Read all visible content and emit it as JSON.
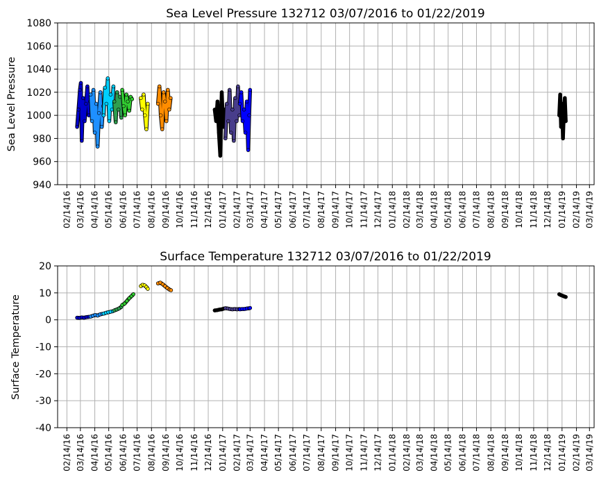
{
  "chart_data": [
    {
      "type": "scatter",
      "title": "Sea Level Pressure 132712  03/07/2016 to 01/22/2019",
      "ylabel": "Sea Level Pressure",
      "xlabel": "",
      "ylim": [
        940,
        1080
      ],
      "yticks": [
        940,
        960,
        980,
        1000,
        1020,
        1040,
        1060,
        1080
      ],
      "xlim": [
        "2016-01-25",
        "2019-03-24"
      ],
      "grid": true,
      "xtick_labels": [
        "02/14/16",
        "03/14/16",
        "04/14/16",
        "05/14/16",
        "06/14/16",
        "07/14/16",
        "08/14/16",
        "09/14/16",
        "10/14/16",
        "11/14/16",
        "12/14/16",
        "01/14/17",
        "02/14/17",
        "03/14/17",
        "04/14/17",
        "05/14/17",
        "06/14/17",
        "07/14/17",
        "08/14/17",
        "09/14/17",
        "10/14/17",
        "11/14/17",
        "12/14/17",
        "01/14/18",
        "02/14/18",
        "03/14/18",
        "04/14/18",
        "05/14/18",
        "06/14/18",
        "07/14/18",
        "08/14/18",
        "09/14/18",
        "10/14/18",
        "11/14/18",
        "12/14/18",
        "01/14/19",
        "02/14/19",
        "03/14/19"
      ],
      "series": [
        {
          "color": "#0000cd",
          "points": [
            [
              "2016-03-07",
              990
            ],
            [
              "2016-03-10",
              1005
            ],
            [
              "2016-03-13",
              1022
            ],
            [
              "2016-03-15",
              1028
            ],
            [
              "2016-03-17",
              978
            ],
            [
              "2016-03-20",
              1015
            ],
            [
              "2016-03-23",
              995
            ],
            [
              "2016-03-26",
              1010
            ],
            [
              "2016-03-29",
              1025
            ],
            [
              "2016-04-01",
              1000
            ],
            [
              "2016-04-04",
              1012
            ]
          ]
        },
        {
          "color": "#1e90ff",
          "points": [
            [
              "2016-04-05",
              1018
            ],
            [
              "2016-04-08",
              995
            ],
            [
              "2016-04-11",
              1022
            ],
            [
              "2016-04-14",
              985
            ],
            [
              "2016-04-17",
              1010
            ],
            [
              "2016-04-20",
              973
            ],
            [
              "2016-04-23",
              1002
            ],
            [
              "2016-04-26",
              1020
            ],
            [
              "2016-04-29",
              990
            ],
            [
              "2016-05-02",
              1008
            ]
          ]
        },
        {
          "color": "#00cfff",
          "points": [
            [
              "2016-05-03",
              1000
            ],
            [
              "2016-05-06",
              1024
            ],
            [
              "2016-05-09",
              1010
            ],
            [
              "2016-05-12",
              1032
            ],
            [
              "2016-05-15",
              995
            ],
            [
              "2016-05-18",
              1018
            ],
            [
              "2016-05-21",
              1005
            ],
            [
              "2016-05-24",
              1025
            ]
          ]
        },
        {
          "color": "#2e9f4f",
          "points": [
            [
              "2016-05-26",
              1012
            ],
            [
              "2016-05-29",
              994
            ],
            [
              "2016-06-01",
              1020
            ],
            [
              "2016-06-04",
              1005
            ],
            [
              "2016-06-07",
              1016
            ],
            [
              "2016-06-10",
              998
            ]
          ]
        },
        {
          "color": "#32cd32",
          "points": [
            [
              "2016-06-12",
              1022
            ],
            [
              "2016-06-15",
              1008
            ],
            [
              "2016-06-18",
              1000
            ],
            [
              "2016-06-21",
              1018
            ],
            [
              "2016-06-24",
              1012
            ],
            [
              "2016-06-27",
              1004
            ],
            [
              "2016-06-30",
              1016
            ],
            [
              "2016-07-03",
              1014
            ]
          ]
        },
        {
          "color": "#ffff00",
          "points": [
            [
              "2016-07-22",
              1015
            ],
            [
              "2016-07-25",
              1005
            ],
            [
              "2016-07-28",
              1018
            ],
            [
              "2016-07-31",
              1000
            ],
            [
              "2016-08-03",
              988
            ],
            [
              "2016-08-06",
              1010
            ]
          ]
        },
        {
          "color": "#ff8c00",
          "points": [
            [
              "2016-08-28",
              1010
            ],
            [
              "2016-08-31",
              1025
            ],
            [
              "2016-09-03",
              1000
            ],
            [
              "2016-09-06",
              988
            ],
            [
              "2016-09-09",
              1020
            ],
            [
              "2016-09-12",
              1012
            ],
            [
              "2016-09-15",
              995
            ],
            [
              "2016-09-18",
              1022
            ],
            [
              "2016-09-21",
              1005
            ],
            [
              "2016-09-24",
              1015
            ]
          ]
        },
        {
          "color": "#000000",
          "points": [
            [
              "2016-12-28",
              1005
            ],
            [
              "2016-12-31",
              995
            ],
            [
              "2017-01-03",
              1012
            ],
            [
              "2017-01-06",
              985
            ],
            [
              "2017-01-09",
              965
            ],
            [
              "2017-01-12",
              1020
            ],
            [
              "2017-01-15",
              990
            ],
            [
              "2017-01-18",
              1005
            ]
          ]
        },
        {
          "color": "#483d8b",
          "points": [
            [
              "2017-01-20",
              980
            ],
            [
              "2017-01-23",
              1010
            ],
            [
              "2017-01-26",
              995
            ],
            [
              "2017-01-29",
              1022
            ],
            [
              "2017-02-01",
              985
            ],
            [
              "2017-02-04",
              1005
            ],
            [
              "2017-02-07",
              978
            ],
            [
              "2017-02-10",
              1015
            ],
            [
              "2017-02-13",
              995
            ],
            [
              "2017-02-16",
              1025
            ],
            [
              "2017-02-19",
              1000
            ]
          ]
        },
        {
          "color": "#0000ff",
          "points": [
            [
              "2017-02-20",
              1010
            ],
            [
              "2017-02-23",
              1020
            ],
            [
              "2017-02-26",
              995
            ],
            [
              "2017-03-01",
              1005
            ],
            [
              "2017-03-04",
              985
            ],
            [
              "2017-03-07",
              1012
            ],
            [
              "2017-03-10",
              970
            ],
            [
              "2017-03-12",
              1000
            ],
            [
              "2017-03-14",
              1022
            ]
          ]
        },
        {
          "color": "#000000",
          "points": [
            [
              "2019-01-08",
              1000
            ],
            [
              "2019-01-10",
              1018
            ],
            [
              "2019-01-12",
              990
            ],
            [
              "2019-01-14",
              1010
            ],
            [
              "2019-01-16",
              980
            ],
            [
              "2019-01-18",
              1005
            ],
            [
              "2019-01-20",
              1015
            ],
            [
              "2019-01-22",
              995
            ]
          ]
        }
      ]
    },
    {
      "type": "scatter",
      "title": "Surface Temperature 132712  03/07/2016 to 01/22/2019",
      "ylabel": "Surface Temperature",
      "xlabel": "",
      "ylim": [
        -40,
        20
      ],
      "yticks": [
        -40,
        -30,
        -20,
        -10,
        0,
        10,
        20
      ],
      "xlim": [
        "2016-01-25",
        "2019-03-24"
      ],
      "grid": true,
      "xtick_labels": [
        "02/14/16",
        "03/14/16",
        "04/14/16",
        "05/14/16",
        "06/14/16",
        "07/14/16",
        "08/14/16",
        "09/14/16",
        "10/14/16",
        "11/14/16",
        "12/14/16",
        "01/14/17",
        "02/14/17",
        "03/14/17",
        "04/14/17",
        "05/14/17",
        "06/14/17",
        "07/14/17",
        "08/14/17",
        "09/14/17",
        "10/14/17",
        "11/14/17",
        "12/14/17",
        "01/14/18",
        "02/14/18",
        "03/14/18",
        "04/14/18",
        "05/14/18",
        "06/14/18",
        "07/14/18",
        "08/14/18",
        "09/14/18",
        "10/14/18",
        "11/14/18",
        "12/14/18",
        "01/14/19",
        "02/14/19",
        "03/14/19"
      ],
      "series": [
        {
          "color": "#0000cd",
          "points": [
            [
              "2016-03-07",
              0.8
            ],
            [
              "2016-03-12",
              0.7
            ],
            [
              "2016-03-17",
              0.9
            ],
            [
              "2016-03-22",
              0.8
            ],
            [
              "2016-03-27",
              1.0
            ],
            [
              "2016-04-01",
              1.1
            ]
          ]
        },
        {
          "color": "#1e90ff",
          "points": [
            [
              "2016-04-05",
              1.2
            ],
            [
              "2016-04-10",
              1.5
            ],
            [
              "2016-04-15",
              1.8
            ],
            [
              "2016-04-20",
              1.6
            ],
            [
              "2016-04-25",
              2.0
            ],
            [
              "2016-04-30",
              2.2
            ]
          ]
        },
        {
          "color": "#00cfff",
          "points": [
            [
              "2016-05-03",
              2.3
            ],
            [
              "2016-05-08",
              2.6
            ],
            [
              "2016-05-13",
              2.8
            ],
            [
              "2016-05-18",
              3.0
            ],
            [
              "2016-05-23",
              3.2
            ]
          ]
        },
        {
          "color": "#2e9f4f",
          "points": [
            [
              "2016-05-26",
              3.5
            ],
            [
              "2016-05-31",
              3.8
            ],
            [
              "2016-06-05",
              4.2
            ],
            [
              "2016-06-10",
              4.8
            ]
          ]
        },
        {
          "color": "#32cd32",
          "points": [
            [
              "2016-06-12",
              5.5
            ],
            [
              "2016-06-17",
              6.0
            ],
            [
              "2016-06-22",
              7.0
            ],
            [
              "2016-06-27",
              8.0
            ],
            [
              "2016-07-02",
              8.8
            ],
            [
              "2016-07-06",
              9.5
            ]
          ]
        },
        {
          "color": "#ffff00",
          "points": [
            [
              "2016-07-22",
              12.5
            ],
            [
              "2016-07-26",
              13.0
            ],
            [
              "2016-07-30",
              12.8
            ],
            [
              "2016-08-03",
              12.2
            ],
            [
              "2016-08-06",
              11.5
            ]
          ]
        },
        {
          "color": "#ff8c00",
          "points": [
            [
              "2016-08-28",
              13.5
            ],
            [
              "2016-09-02",
              13.8
            ],
            [
              "2016-09-07",
              13.2
            ],
            [
              "2016-09-12",
              12.5
            ],
            [
              "2016-09-17",
              11.8
            ],
            [
              "2016-09-22",
              11.2
            ],
            [
              "2016-09-25",
              11.0
            ]
          ]
        },
        {
          "color": "#000000",
          "points": [
            [
              "2016-12-28",
              3.5
            ],
            [
              "2017-01-02",
              3.6
            ],
            [
              "2017-01-07",
              3.8
            ],
            [
              "2017-01-12",
              3.9
            ],
            [
              "2017-01-17",
              4.2
            ]
          ]
        },
        {
          "color": "#483d8b",
          "points": [
            [
              "2017-01-20",
              4.3
            ],
            [
              "2017-01-25",
              4.2
            ],
            [
              "2017-01-30",
              4.0
            ],
            [
              "2017-02-04",
              3.9
            ],
            [
              "2017-02-09",
              4.0
            ],
            [
              "2017-02-14",
              3.9
            ],
            [
              "2017-02-19",
              4.0
            ]
          ]
        },
        {
          "color": "#0000ff",
          "points": [
            [
              "2017-02-20",
              3.9
            ],
            [
              "2017-02-25",
              4.0
            ],
            [
              "2017-03-02",
              4.0
            ],
            [
              "2017-03-07",
              4.2
            ],
            [
              "2017-03-12",
              4.3
            ],
            [
              "2017-03-14",
              4.4
            ]
          ]
        },
        {
          "color": "#000000",
          "points": [
            [
              "2019-01-08",
              9.5
            ],
            [
              "2019-01-11",
              9.2
            ],
            [
              "2019-01-14",
              9.0
            ],
            [
              "2019-01-17",
              8.8
            ],
            [
              "2019-01-20",
              8.6
            ],
            [
              "2019-01-22",
              8.5
            ]
          ]
        }
      ]
    }
  ]
}
